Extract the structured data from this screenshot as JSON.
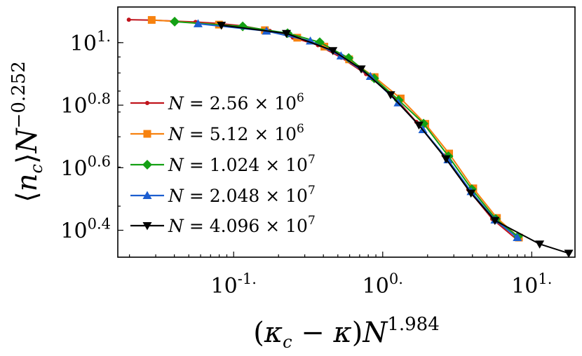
{
  "chart_data": {
    "type": "line",
    "xscale": "log",
    "yscale": "log",
    "xlim": [
      0.0167,
      19.5
    ],
    "ylim": [
      2.06,
      13.0
    ],
    "xticks": [
      {
        "value": 0.1,
        "base": "10",
        "exp": "-1."
      },
      {
        "value": 1,
        "base": "10",
        "exp": "0."
      },
      {
        "value": 10,
        "base": "10",
        "exp": "1."
      }
    ],
    "yticks": [
      {
        "value": 2.512,
        "base": "10",
        "exp": "0.4"
      },
      {
        "value": 3.981,
        "base": "10",
        "exp": "0.6"
      },
      {
        "value": 6.31,
        "base": "10",
        "exp": "0.8"
      },
      {
        "value": 10,
        "base": "10",
        "exp": "1."
      }
    ],
    "xlabel": "(κc − κ)N^1.984",
    "ylabel": "⟨nc⟩N^−0.252",
    "legend_position": "lower-left",
    "series": [
      {
        "name": "N = 2.56 × 10^6",
        "color": "#c0141c",
        "marker": "dot",
        "points": [
          [
            0.0198,
            11.84
          ],
          [
            0.0284,
            11.8
          ],
          [
            0.0555,
            11.64
          ],
          [
            0.078,
            11.52
          ],
          [
            0.113,
            11.32
          ],
          [
            0.175,
            10.9
          ],
          [
            0.25,
            10.38
          ],
          [
            0.368,
            9.81
          ],
          [
            0.528,
            8.95
          ],
          [
            0.774,
            7.93
          ],
          [
            1.15,
            6.86
          ],
          [
            1.68,
            5.58
          ],
          [
            2.56,
            4.36
          ],
          [
            3.75,
            3.39
          ],
          [
            5.43,
            2.73
          ],
          [
            7.92,
            2.35
          ]
        ]
      },
      {
        "name": "N = 5.12 × 10^6",
        "color": "#f7820f",
        "marker": "square",
        "points": [
          [
            0.0282,
            11.82
          ],
          [
            0.0797,
            11.42
          ],
          [
            0.162,
            10.96
          ],
          [
            0.267,
            10.37
          ],
          [
            0.406,
            9.71
          ],
          [
            0.595,
            8.84
          ],
          [
            0.883,
            7.76
          ],
          [
            1.32,
            6.63
          ],
          [
            1.93,
            5.5
          ],
          [
            2.79,
            4.42
          ],
          [
            4.05,
            3.42
          ],
          [
            5.84,
            2.75
          ],
          [
            8.2,
            2.38
          ]
        ]
      },
      {
        "name": "N = 1.024 × 10^7",
        "color": "#14a014",
        "marker": "diamond",
        "points": [
          [
            0.0402,
            11.67
          ],
          [
            0.115,
            11.27
          ],
          [
            0.23,
            10.72
          ],
          [
            0.378,
            10.03
          ],
          [
            0.591,
            8.93
          ],
          [
            0.877,
            7.69
          ],
          [
            1.28,
            6.55
          ],
          [
            1.88,
            5.51
          ],
          [
            2.76,
            4.33
          ],
          [
            3.96,
            3.4
          ],
          [
            5.73,
            2.73
          ],
          [
            8.08,
            2.4
          ]
        ]
      },
      {
        "name": "N = 2.048 × 10^7",
        "color": "#1c5ed0",
        "marker": "triangle-up",
        "points": [
          [
            0.0577,
            11.49
          ],
          [
            0.166,
            10.89
          ],
          [
            0.327,
            10.12
          ],
          [
            0.525,
            9.07
          ],
          [
            0.827,
            7.8
          ],
          [
            1.27,
            6.42
          ],
          [
            1.86,
            5.27
          ],
          [
            2.74,
            4.22
          ],
          [
            3.92,
            3.34
          ],
          [
            5.67,
            2.71
          ],
          [
            8.0,
            2.38
          ]
        ]
      },
      {
        "name": "N = 4.096 × 10^7",
        "color": "#000000",
        "marker": "triangle-down",
        "points": [
          [
            0.0827,
            11.37
          ],
          [
            0.226,
            10.7
          ],
          [
            0.463,
            9.43
          ],
          [
            0.717,
            8.24
          ],
          [
            1.13,
            6.81
          ],
          [
            1.75,
            5.45
          ],
          [
            2.66,
            4.25
          ],
          [
            3.91,
            3.3
          ],
          [
            5.66,
            2.7
          ],
          [
            11.3,
            2.27
          ],
          [
            17.7,
            2.12
          ]
        ]
      }
    ]
  }
}
